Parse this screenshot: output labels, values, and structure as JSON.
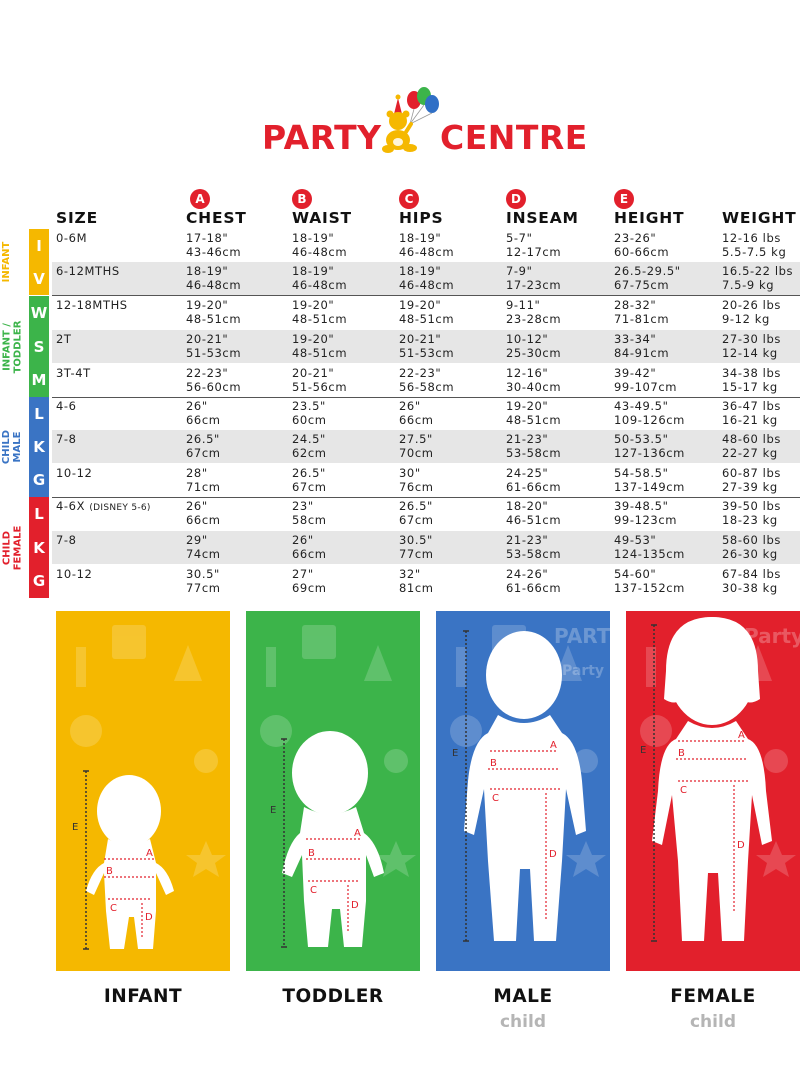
{
  "logo": {
    "text_left": "PARTY",
    "text_right": "CENTRE",
    "mascot": "party-bear-with-balloons-icon",
    "colors": {
      "text": "#e2202c",
      "bear": "#f5b800",
      "balloon_red": "#e2202c",
      "balloon_green": "#3cb44a",
      "balloon_blue": "#2f6fc6",
      "hat": "#e2202c"
    }
  },
  "table": {
    "headers": [
      {
        "letter": "",
        "label": "SIZE"
      },
      {
        "letter": "A",
        "label": "CHEST"
      },
      {
        "letter": "B",
        "label": "WAIST"
      },
      {
        "letter": "C",
        "label": "HIPS"
      },
      {
        "letter": "D",
        "label": "INSEAM"
      },
      {
        "letter": "E",
        "label": "HEIGHT"
      },
      {
        "letter": "",
        "label": "WEIGHT"
      }
    ],
    "badge_color": "#e2202c",
    "groups": [
      {
        "label": "INFANT",
        "color": "#f5b800",
        "sizes": [
          "I",
          "V"
        ],
        "rows": [
          {
            "size": "0-6M",
            "note": "",
            "chest": [
              "17-18\"",
              "43-46cm"
            ],
            "waist": [
              "18-19\"",
              "46-48cm"
            ],
            "hips": [
              "18-19\"",
              "46-48cm"
            ],
            "inseam": [
              "5-7\"",
              "12-17cm"
            ],
            "height": [
              "23-26\"",
              "60-66cm"
            ],
            "weight": [
              "12-16 lbs",
              "5.5-7.5 kg"
            ]
          },
          {
            "size": "6-12MTHS",
            "note": "",
            "chest": [
              "18-19\"",
              "46-48cm"
            ],
            "waist": [
              "18-19\"",
              "46-48cm"
            ],
            "hips": [
              "18-19\"",
              "46-48cm"
            ],
            "inseam": [
              "7-9\"",
              "17-23cm"
            ],
            "height": [
              "26.5-29.5\"",
              "67-75cm"
            ],
            "weight": [
              "16.5-22 lbs",
              "7.5-9 kg"
            ]
          }
        ]
      },
      {
        "label": "INFANT /\nTODDLER",
        "color": "#3cb44a",
        "sizes": [
          "W",
          "S",
          "M"
        ],
        "rows": [
          {
            "size": "12-18MTHS",
            "note": "",
            "chest": [
              "19-20\"",
              "48-51cm"
            ],
            "waist": [
              "19-20\"",
              "48-51cm"
            ],
            "hips": [
              "19-20\"",
              "48-51cm"
            ],
            "inseam": [
              "9-11\"",
              "23-28cm"
            ],
            "height": [
              "28-32\"",
              "71-81cm"
            ],
            "weight": [
              "20-26 lbs",
              "9-12 kg"
            ]
          },
          {
            "size": "2T",
            "note": "",
            "chest": [
              "20-21\"",
              "51-53cm"
            ],
            "waist": [
              "19-20\"",
              "48-51cm"
            ],
            "hips": [
              "20-21\"",
              "51-53cm"
            ],
            "inseam": [
              "10-12\"",
              "25-30cm"
            ],
            "height": [
              "33-34\"",
              "84-91cm"
            ],
            "weight": [
              "27-30 lbs",
              "12-14 kg"
            ]
          },
          {
            "size": "3T-4T",
            "note": "",
            "chest": [
              "22-23\"",
              "56-60cm"
            ],
            "waist": [
              "20-21\"",
              "51-56cm"
            ],
            "hips": [
              "22-23\"",
              "56-58cm"
            ],
            "inseam": [
              "12-16\"",
              "30-40cm"
            ],
            "height": [
              "39-42\"",
              "99-107cm"
            ],
            "weight": [
              "34-38 lbs",
              "15-17 kg"
            ]
          }
        ]
      },
      {
        "label": "CHILD\nMALE",
        "color": "#3a74c4",
        "sizes": [
          "L",
          "K",
          "G"
        ],
        "rows": [
          {
            "size": "4-6",
            "note": "",
            "chest": [
              "26\"",
              "66cm"
            ],
            "waist": [
              "23.5\"",
              "60cm"
            ],
            "hips": [
              "26\"",
              "66cm"
            ],
            "inseam": [
              "19-20\"",
              "48-51cm"
            ],
            "height": [
              "43-49.5\"",
              "109-126cm"
            ],
            "weight": [
              "36-47 lbs",
              "16-21 kg"
            ]
          },
          {
            "size": "7-8",
            "note": "",
            "chest": [
              "26.5\"",
              "67cm"
            ],
            "waist": [
              "24.5\"",
              "62cm"
            ],
            "hips": [
              "27.5\"",
              "70cm"
            ],
            "inseam": [
              "21-23\"",
              "53-58cm"
            ],
            "height": [
              "50-53.5\"",
              "127-136cm"
            ],
            "weight": [
              "48-60 lbs",
              "22-27 kg"
            ]
          },
          {
            "size": "10-12",
            "note": "",
            "chest": [
              "28\"",
              "71cm"
            ],
            "waist": [
              "26.5\"",
              "67cm"
            ],
            "hips": [
              "30\"",
              "76cm"
            ],
            "inseam": [
              "24-25\"",
              "61-66cm"
            ],
            "height": [
              "54-58.5\"",
              "137-149cm"
            ],
            "weight": [
              "60-87 lbs",
              "27-39 kg"
            ]
          }
        ]
      },
      {
        "label": "CHILD\nFEMALE",
        "color": "#e2202c",
        "sizes": [
          "L",
          "K",
          "G"
        ],
        "rows": [
          {
            "size": "4-6X",
            "note": "(DISNEY 5-6)",
            "chest": [
              "26\"",
              "66cm"
            ],
            "waist": [
              "23\"",
              "58cm"
            ],
            "hips": [
              "26.5\"",
              "67cm"
            ],
            "inseam": [
              "18-20\"",
              "46-51cm"
            ],
            "height": [
              "39-48.5\"",
              "99-123cm"
            ],
            "weight": [
              "39-50 lbs",
              "18-23 kg"
            ]
          },
          {
            "size": "7-8",
            "note": "",
            "chest": [
              "29\"",
              "74cm"
            ],
            "waist": [
              "26\"",
              "66cm"
            ],
            "hips": [
              "30.5\"",
              "77cm"
            ],
            "inseam": [
              "21-23\"",
              "53-58cm"
            ],
            "height": [
              "49-53\"",
              "124-135cm"
            ],
            "weight": [
              "58-60 lbs",
              "26-30 kg"
            ]
          },
          {
            "size": "10-12",
            "note": "",
            "chest": [
              "30.5\"",
              "77cm"
            ],
            "waist": [
              "27\"",
              "69cm"
            ],
            "hips": [
              "32\"",
              "81cm"
            ],
            "inseam": [
              "24-26\"",
              "61-66cm"
            ],
            "height": [
              "54-60\"",
              "137-152cm"
            ],
            "weight": [
              "67-84 lbs",
              "30-38 kg"
            ]
          }
        ]
      }
    ]
  },
  "panels": [
    {
      "label": "INFANT",
      "sub": "",
      "color": "#f5b800",
      "figure": "infant-silhouette-icon",
      "marks": [
        "A",
        "B",
        "C",
        "D",
        "E"
      ]
    },
    {
      "label": "TODDLER",
      "sub": "",
      "color": "#3cb44a",
      "figure": "toddler-silhouette-icon",
      "marks": [
        "A",
        "B",
        "C",
        "D",
        "E"
      ]
    },
    {
      "label": "MALE",
      "sub": "child",
      "color": "#3a74c4",
      "figure": "boy-silhouette-icon",
      "marks": [
        "A",
        "B",
        "C",
        "D",
        "E"
      ],
      "background_text": [
        "PARTY",
        "Party"
      ]
    },
    {
      "label": "FEMALE",
      "sub": "child",
      "color": "#e2202c",
      "figure": "girl-silhouette-icon",
      "marks": [
        "A",
        "B",
        "C",
        "D",
        "E"
      ],
      "background_text": [
        "Party"
      ]
    }
  ]
}
